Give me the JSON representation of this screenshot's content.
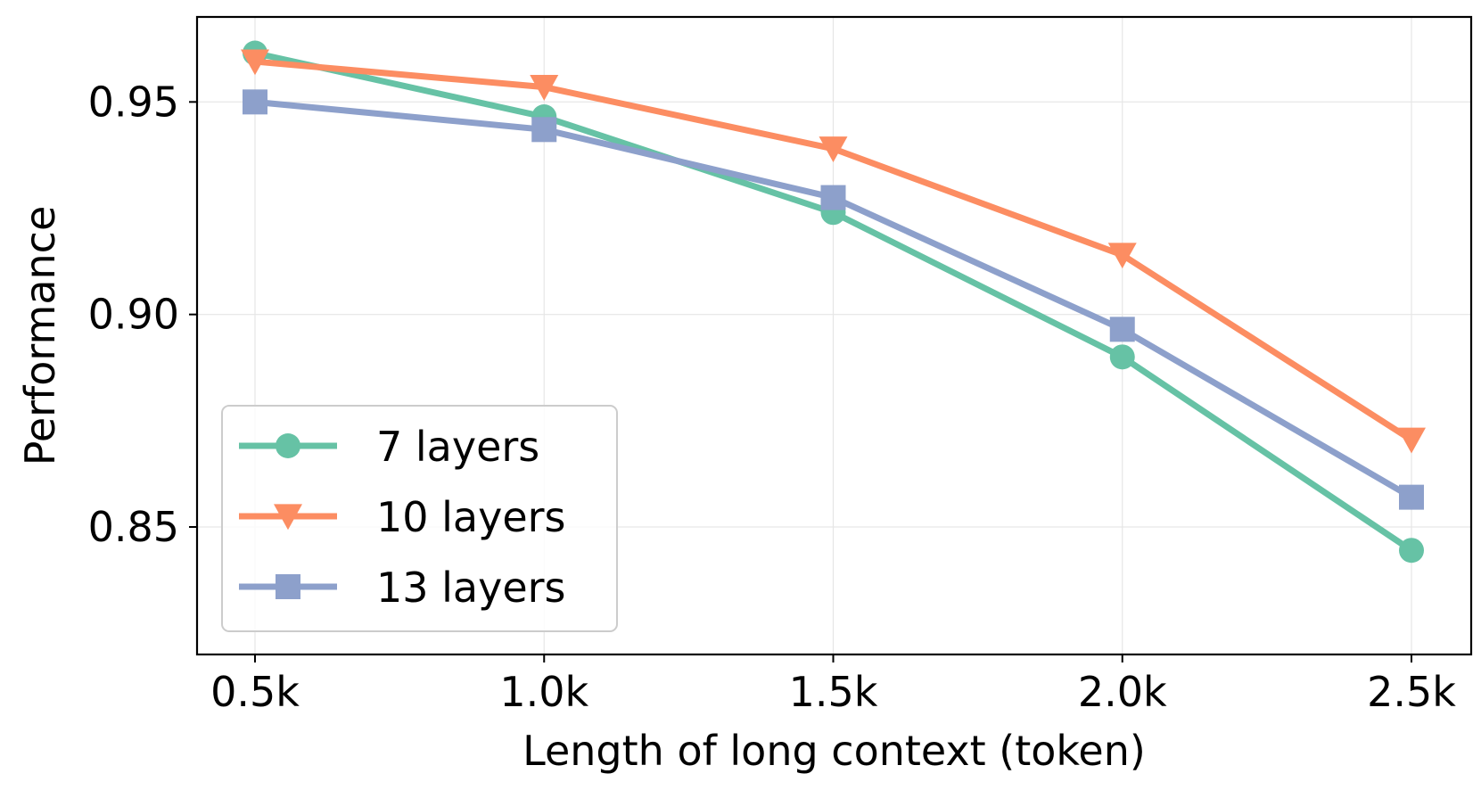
{
  "chart_data": {
    "type": "line",
    "title": "",
    "xlabel": "Length of long context (token)",
    "ylabel": "Performance",
    "categories": [
      "0.5k",
      "1.0k",
      "1.5k",
      "2.0k",
      "2.5k"
    ],
    "ylim": [
      0.82,
      0.97
    ],
    "yticks": [
      0.85,
      0.9,
      0.95
    ],
    "ytick_labels": [
      "0.85",
      "0.90",
      "0.95"
    ],
    "grid": true,
    "legend_position": "lower-left",
    "series": [
      {
        "name": "7 layers",
        "legend_label": "7 layers",
        "color": "#66c2a5",
        "marker": "circle",
        "values": [
          0.9615,
          0.9465,
          0.924,
          0.89,
          0.8445
        ]
      },
      {
        "name": "10 layers",
        "legend_label": "10 layers",
        "color": "#fc8d62",
        "marker": "triangle-down",
        "values": [
          0.9595,
          0.9535,
          0.939,
          0.914,
          0.8705
        ]
      },
      {
        "name": "13 layers",
        "legend_label": "13 layers",
        "color": "#8da0cb",
        "marker": "square",
        "values": [
          0.95,
          0.9435,
          0.9275,
          0.8965,
          0.857
        ]
      }
    ]
  }
}
